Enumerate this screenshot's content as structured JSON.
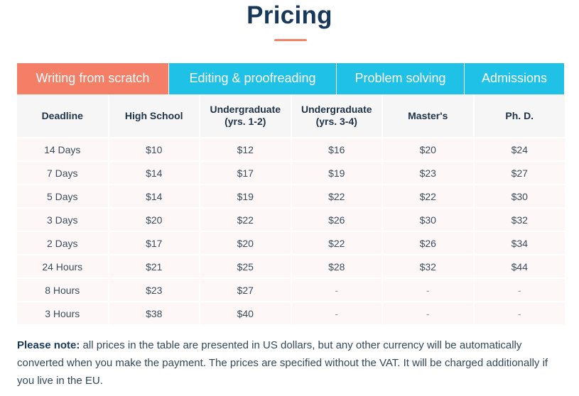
{
  "page": {
    "title": "Pricing"
  },
  "tabs": [
    {
      "label": "Writing from scratch",
      "active": true
    },
    {
      "label": "Editing & proofreading",
      "active": false
    },
    {
      "label": "Problem solving",
      "active": false
    },
    {
      "label": "Admissions",
      "active": false
    }
  ],
  "table": {
    "headers": [
      "Deadline",
      "High School",
      "Undergraduate (yrs. 1-2)",
      "Undergraduate (yrs. 3-4)",
      "Master's",
      "Ph. D."
    ],
    "rows": [
      [
        "14 Days",
        "$10",
        "$12",
        "$16",
        "$20",
        "$24"
      ],
      [
        "7 Days",
        "$14",
        "$17",
        "$19",
        "$23",
        "$27"
      ],
      [
        "5 Days",
        "$14",
        "$19",
        "$22",
        "$22",
        "$30"
      ],
      [
        "3 Days",
        "$20",
        "$22",
        "$26",
        "$30",
        "$32"
      ],
      [
        "2 Days",
        "$17",
        "$20",
        "$22",
        "$26",
        "$34"
      ],
      [
        "24 Hours",
        "$21",
        "$25",
        "$28",
        "$32",
        "$44"
      ],
      [
        "8 Hours",
        "$23",
        "$27",
        "-",
        "-",
        "-"
      ],
      [
        "3 Hours",
        "$38",
        "$40",
        "-",
        "-",
        "-"
      ]
    ]
  },
  "note": {
    "label": "Please note:",
    "text": " all prices in the table are presented in US dollars, but any other currency will be automatically converted when you make the payment. The prices are specified without the VAT. It will be charged additionally if you live in the EU."
  },
  "colors": {
    "accent": "#f47f66",
    "tab": "#20c1e7",
    "title": "#17385a"
  }
}
